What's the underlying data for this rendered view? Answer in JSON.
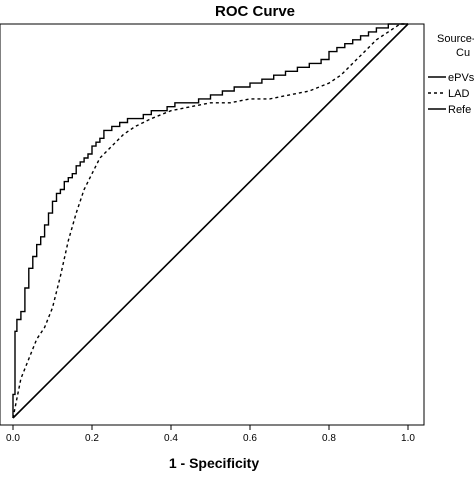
{
  "chart_data": {
    "type": "line",
    "title": "ROC Curve",
    "xlabel": "1 - Specificity",
    "ylabel": "",
    "xlim": [
      0,
      1.0
    ],
    "ylim": [
      0,
      1.0
    ],
    "x_ticks": [
      "0.0",
      "0.2",
      "0.4",
      "0.6",
      "0.8",
      "1.0"
    ],
    "grid": false,
    "legend": {
      "title": "Source-of-the-Curve",
      "title_lines": [
        "Source-",
        "Cu"
      ],
      "placement": "right",
      "entries": [
        "ePVs",
        "LAD",
        "Refe"
      ]
    },
    "series": [
      {
        "name": "ePVs",
        "style": "solid",
        "x": [
          0.0,
          0.0,
          0.005,
          0.005,
          0.01,
          0.01,
          0.02,
          0.02,
          0.03,
          0.03,
          0.04,
          0.04,
          0.05,
          0.05,
          0.06,
          0.06,
          0.07,
          0.07,
          0.08,
          0.08,
          0.09,
          0.09,
          0.1,
          0.1,
          0.11,
          0.11,
          0.12,
          0.12,
          0.13,
          0.13,
          0.14,
          0.14,
          0.15,
          0.15,
          0.16,
          0.16,
          0.17,
          0.17,
          0.18,
          0.18,
          0.19,
          0.19,
          0.2,
          0.2,
          0.21,
          0.21,
          0.22,
          0.22,
          0.23,
          0.23,
          0.25,
          0.25,
          0.27,
          0.27,
          0.29,
          0.29,
          0.31,
          0.31,
          0.33,
          0.33,
          0.35,
          0.35,
          0.37,
          0.37,
          0.39,
          0.39,
          0.41,
          0.41,
          0.44,
          0.44,
          0.47,
          0.47,
          0.5,
          0.5,
          0.53,
          0.53,
          0.56,
          0.56,
          0.6,
          0.6,
          0.63,
          0.63,
          0.66,
          0.66,
          0.69,
          0.69,
          0.72,
          0.72,
          0.75,
          0.75,
          0.78,
          0.78,
          0.8,
          0.8,
          0.82,
          0.82,
          0.84,
          0.84,
          0.86,
          0.86,
          0.88,
          0.88,
          0.9,
          0.9,
          0.92,
          0.92,
          0.95,
          0.95,
          0.98,
          0.98,
          1.0
        ],
        "y": [
          0.0,
          0.06,
          0.06,
          0.22,
          0.22,
          0.25,
          0.25,
          0.27,
          0.27,
          0.33,
          0.33,
          0.38,
          0.38,
          0.41,
          0.41,
          0.44,
          0.44,
          0.46,
          0.46,
          0.49,
          0.49,
          0.52,
          0.52,
          0.55,
          0.55,
          0.57,
          0.57,
          0.58,
          0.58,
          0.6,
          0.6,
          0.61,
          0.61,
          0.62,
          0.62,
          0.64,
          0.64,
          0.65,
          0.65,
          0.66,
          0.66,
          0.67,
          0.67,
          0.69,
          0.69,
          0.7,
          0.7,
          0.71,
          0.71,
          0.73,
          0.73,
          0.74,
          0.74,
          0.75,
          0.75,
          0.76,
          0.76,
          0.76,
          0.76,
          0.77,
          0.77,
          0.78,
          0.78,
          0.78,
          0.78,
          0.79,
          0.79,
          0.8,
          0.8,
          0.8,
          0.8,
          0.81,
          0.81,
          0.82,
          0.82,
          0.83,
          0.83,
          0.84,
          0.84,
          0.85,
          0.85,
          0.86,
          0.86,
          0.87,
          0.87,
          0.88,
          0.88,
          0.89,
          0.89,
          0.9,
          0.9,
          0.91,
          0.91,
          0.93,
          0.93,
          0.94,
          0.94,
          0.95,
          0.95,
          0.96,
          0.96,
          0.97,
          0.97,
          0.98,
          0.98,
          0.99,
          0.99,
          1.0,
          1.0,
          1.0,
          1.0
        ]
      },
      {
        "name": "LAD",
        "style": "dashed",
        "x": [
          0.0,
          0.02,
          0.04,
          0.06,
          0.08,
          0.1,
          0.12,
          0.14,
          0.16,
          0.18,
          0.2,
          0.22,
          0.25,
          0.28,
          0.31,
          0.35,
          0.4,
          0.45,
          0.5,
          0.55,
          0.6,
          0.65,
          0.7,
          0.75,
          0.8,
          0.83,
          0.86,
          0.89,
          0.92,
          0.95,
          0.98,
          1.0
        ],
        "y": [
          0.0,
          0.1,
          0.15,
          0.2,
          0.23,
          0.28,
          0.36,
          0.45,
          0.52,
          0.58,
          0.62,
          0.66,
          0.69,
          0.72,
          0.74,
          0.76,
          0.78,
          0.79,
          0.8,
          0.8,
          0.81,
          0.81,
          0.82,
          0.83,
          0.85,
          0.87,
          0.9,
          0.93,
          0.96,
          0.98,
          1.0,
          1.0
        ]
      },
      {
        "name": "Refe",
        "style": "solid",
        "x": [
          0.0,
          1.0
        ],
        "y": [
          0.0,
          1.0
        ]
      }
    ]
  }
}
